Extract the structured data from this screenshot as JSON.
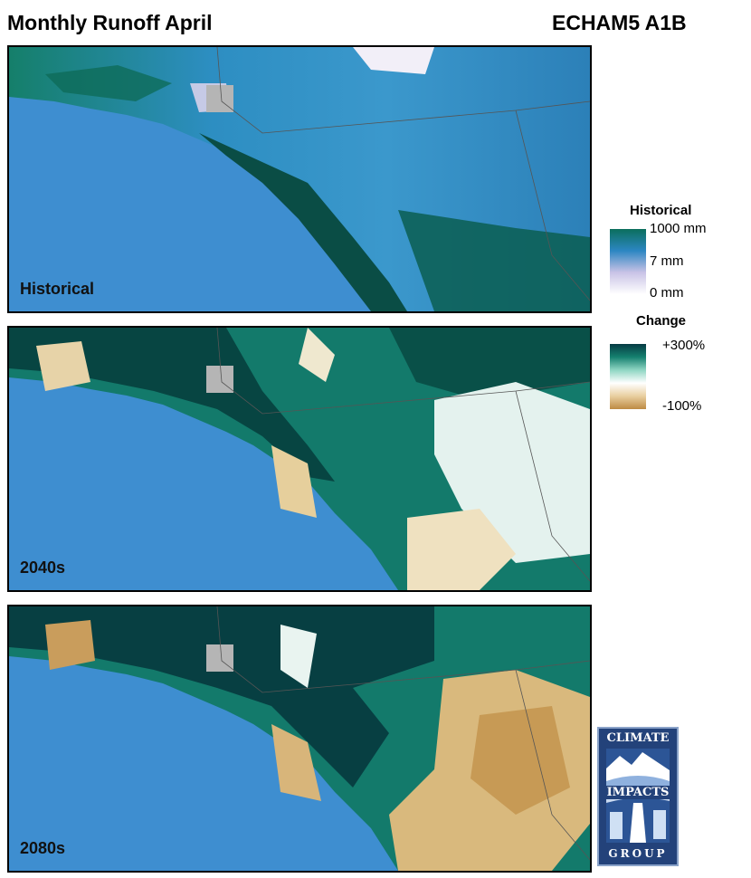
{
  "header": {
    "title": "Monthly Runoff April",
    "model": "ECHAM5 A1B"
  },
  "panels": [
    {
      "label": "Historical"
    },
    {
      "label": "2040s"
    },
    {
      "label": "2080s"
    }
  ],
  "legend": {
    "historical": {
      "title": "Historical",
      "ticks": [
        "1000 mm",
        "7 mm",
        "0 mm"
      ],
      "colors": [
        "#0b6e5c",
        "#2c86c2",
        "#c9c3e6",
        "#ffffff"
      ]
    },
    "change": {
      "title": "Change",
      "ticks": [
        "+300%",
        "-100%"
      ],
      "colors": [
        "#063b44",
        "#15806f",
        "#8fd6c3",
        "#ffffff",
        "#e9cfa0",
        "#bd8b43"
      ]
    }
  },
  "logo": {
    "line1": "CLIMATE",
    "line2": "IMPACTS",
    "line3": "GROUP"
  },
  "colors": {
    "ocean": "#3e8ed0",
    "no_data": "#b5b5b5"
  }
}
